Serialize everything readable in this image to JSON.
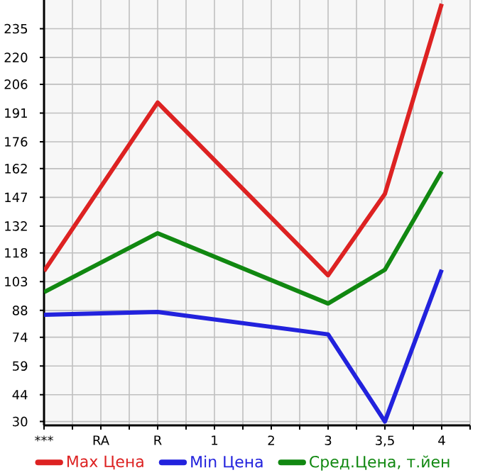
{
  "chart_data": {
    "type": "line",
    "categories": [
      "***",
      "RA",
      "R",
      "1",
      "2",
      "3",
      "3,5",
      "4"
    ],
    "series": [
      {
        "name": "Max Цена",
        "color": "#dd2222",
        "values": [
          108.5,
          null,
          196.5,
          null,
          null,
          106.3,
          148.8,
          248
        ]
      },
      {
        "name": "Min Цена",
        "color": "#2222dd",
        "values": [
          85.7,
          null,
          87.2,
          null,
          null,
          75.5,
          30,
          109.2
        ]
      },
      {
        "name": "Сред.Цена, т.йен",
        "color": "#118811",
        "values": [
          97.5,
          null,
          128.3,
          null,
          null,
          91.6,
          109.2,
          160.5
        ]
      }
    ],
    "ylim": [
      28,
      250
    ],
    "yticks": [
      30,
      44,
      59,
      74,
      88,
      103,
      118,
      132,
      147,
      162,
      176,
      191,
      206,
      220,
      235
    ],
    "grid": true,
    "legend": "bottom",
    "marker": "none",
    "line_style": "solid"
  }
}
